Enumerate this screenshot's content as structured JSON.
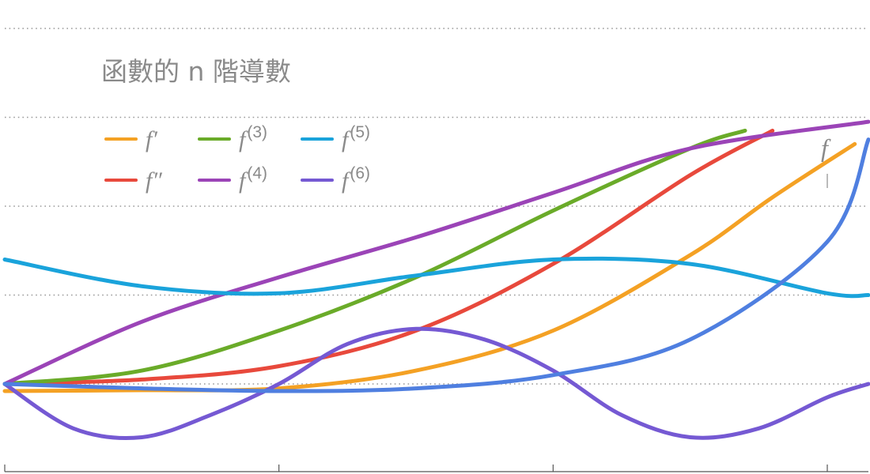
{
  "title": "函數的 n 階導數",
  "chart_data": {
    "type": "line",
    "grid": true,
    "x": [
      0,
      1,
      2,
      3,
      3.15
    ],
    "xlim": [
      0,
      3.15
    ],
    "ylim": [
      -0.55,
      2.6
    ],
    "series": [
      {
        "name": "f′",
        "label_main": "f",
        "label_sup": "′",
        "color": "#f4a124",
        "x": [
          0,
          0.5,
          1,
          1.5,
          2,
          2.5,
          2.8,
          3.1
        ],
        "y": [
          -0.08,
          -0.07,
          -0.05,
          0.15,
          0.6,
          1.45,
          2.1,
          2.7
        ]
      },
      {
        "name": "f″",
        "label_main": "f",
        "label_sup": "″",
        "color": "#e8493c",
        "x": [
          0,
          0.5,
          1,
          1.5,
          2,
          2.5,
          2.8
        ],
        "y": [
          0.0,
          0.05,
          0.2,
          0.6,
          1.35,
          2.35,
          2.85
        ]
      },
      {
        "name": "f(3)",
        "label_main": "f",
        "label_sup": "(3)",
        "color": "#6aab29",
        "x": [
          0,
          0.5,
          1,
          1.5,
          2,
          2.5,
          2.7
        ],
        "y": [
          0.0,
          0.15,
          0.6,
          1.2,
          1.95,
          2.65,
          2.85
        ]
      },
      {
        "name": "f(4)",
        "label_main": "f",
        "label_sup": "(4)",
        "color": "#9b44b7",
        "x": [
          0,
          0.5,
          1,
          1.5,
          2,
          2.5,
          3.15
        ],
        "y": [
          0.0,
          0.7,
          1.2,
          1.65,
          2.15,
          2.65,
          2.95
        ]
      },
      {
        "name": "f(5)",
        "label_main": "f",
        "label_sup": "(5)",
        "color": "#1aa3db",
        "x": [
          0,
          0.5,
          1,
          1.5,
          2,
          2.5,
          3,
          3.15
        ],
        "y": [
          1.4,
          1.1,
          1.02,
          1.22,
          1.4,
          1.35,
          1.02,
          1.0
        ]
      },
      {
        "name": "f(6)",
        "label_main": "f",
        "label_sup": "(6)",
        "color": "#7559d3",
        "x": [
          0,
          0.25,
          0.5,
          0.75,
          1,
          1.25,
          1.5,
          1.75,
          2,
          2.25,
          2.5,
          2.75,
          3,
          3.15
        ],
        "y": [
          0.0,
          -0.5,
          -0.6,
          -0.35,
          0.0,
          0.45,
          0.62,
          0.5,
          0.15,
          -0.35,
          -0.6,
          -0.5,
          -0.15,
          0.0
        ]
      },
      {
        "name": "f",
        "label_main": "f",
        "label_sup": "",
        "color": "#4f7fe0",
        "x": [
          0,
          0.5,
          1,
          1.5,
          2,
          2.5,
          3,
          3.15
        ],
        "y": [
          0.0,
          -0.05,
          -0.08,
          -0.05,
          0.1,
          0.5,
          1.6,
          2.75
        ]
      }
    ],
    "legend": {
      "position": "top-left",
      "columns": 3,
      "order": [
        "f′",
        "f(3)",
        "f(5)",
        "f″",
        "f(4)",
        "f(6)"
      ]
    },
    "annotations": [
      {
        "text": "f",
        "target_series": "f"
      }
    ]
  }
}
